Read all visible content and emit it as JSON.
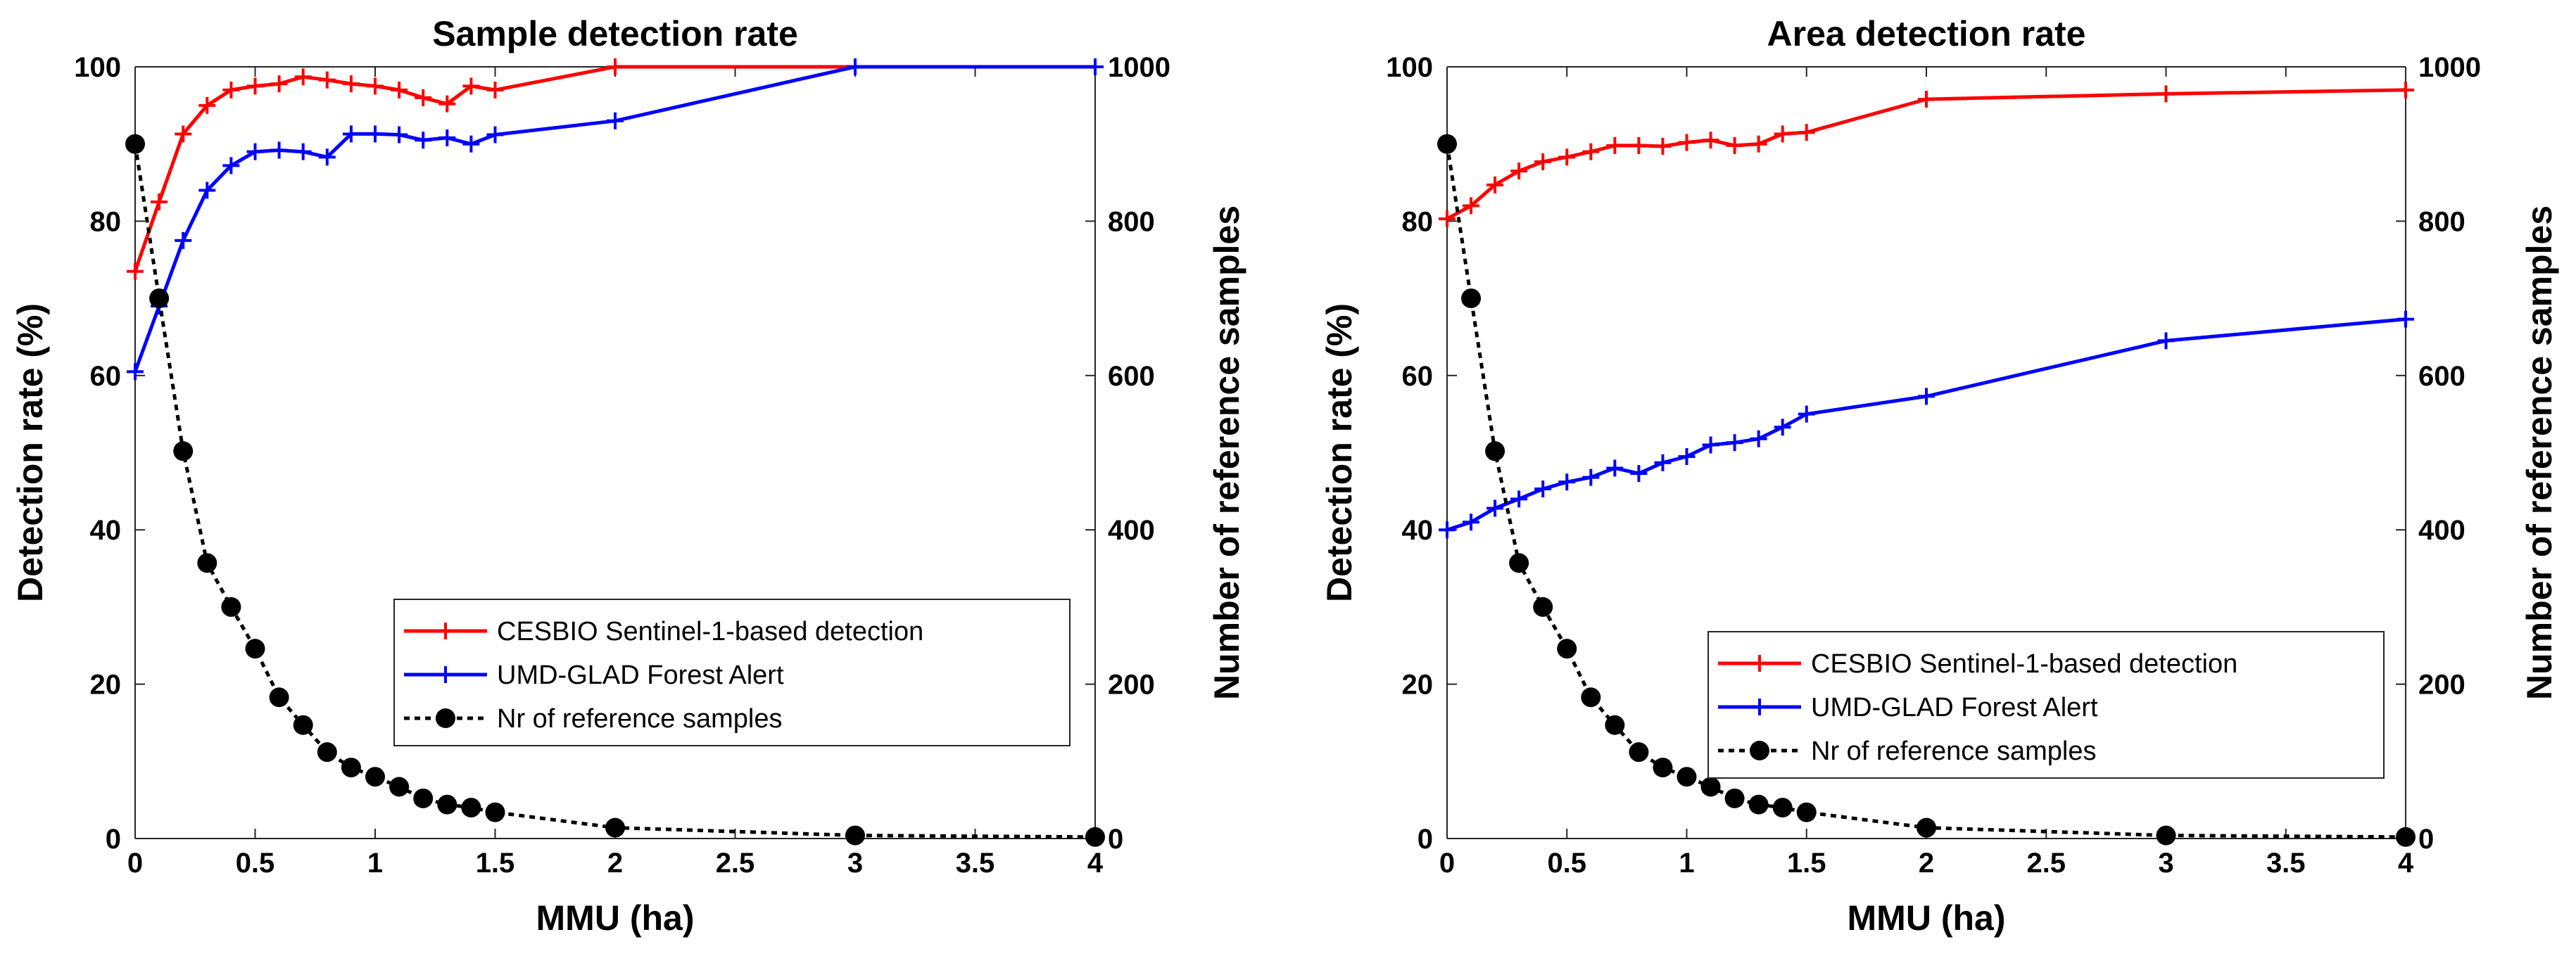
{
  "colors": {
    "red": "#ff0000",
    "blue": "#0000ff",
    "black": "#000000"
  },
  "chart_data": [
    {
      "type": "line",
      "title": "Sample detection rate",
      "xlabel": "MMU (ha)",
      "ylabel": "Detection rate (%)",
      "y2label": "Number of reference samples",
      "xlim": [
        0,
        4
      ],
      "ylim": [
        0,
        100
      ],
      "y2lim": [
        0,
        1000
      ],
      "xticks": [
        "0",
        "0.5",
        "1",
        "1.5",
        "2",
        "2.5",
        "3",
        "3.5",
        "4"
      ],
      "yticks": [
        "0",
        "20",
        "40",
        "60",
        "80",
        "100"
      ],
      "y2ticks": [
        "0",
        "200",
        "400",
        "600",
        "800",
        "1000"
      ],
      "legend_position": "lower-right",
      "series": [
        {
          "name": "CESBIO Sentinel-1-based detection",
          "axis": "left",
          "x": [
            0,
            0.1,
            0.2,
            0.3,
            0.4,
            0.5,
            0.6,
            0.7,
            0.8,
            0.9,
            1.0,
            1.1,
            1.2,
            1.3,
            1.4,
            1.5,
            2,
            3,
            4
          ],
          "values": [
            73.5,
            82.5,
            91.3,
            95.0,
            97.0,
            97.5,
            97.8,
            98.7,
            98.3,
            97.8,
            97.5,
            97.0,
            96.0,
            95.2,
            97.5,
            97.0,
            100,
            100,
            100
          ]
        },
        {
          "name": "UMD-GLAD Forest Alert",
          "axis": "left",
          "x": [
            0,
            0.1,
            0.2,
            0.3,
            0.4,
            0.5,
            0.6,
            0.7,
            0.8,
            0.9,
            1.0,
            1.1,
            1.2,
            1.3,
            1.4,
            1.5,
            2,
            3,
            4
          ],
          "values": [
            60.5,
            69.0,
            77.5,
            84.0,
            87.2,
            89.0,
            89.2,
            89.0,
            88.3,
            91.3,
            91.3,
            91.2,
            90.5,
            90.8,
            90.0,
            91.2,
            93.0,
            100,
            100
          ]
        },
        {
          "name": "Nr of reference samples",
          "axis": "right",
          "x": [
            0,
            0.1,
            0.2,
            0.3,
            0.4,
            0.5,
            0.6,
            0.7,
            0.8,
            0.9,
            1.0,
            1.1,
            1.2,
            1.3,
            1.4,
            1.5,
            2,
            3,
            4
          ],
          "values": [
            900,
            700,
            502,
            357,
            300,
            246,
            183,
            147,
            112,
            92,
            80,
            67,
            52,
            44,
            40,
            34,
            14,
            4,
            2
          ]
        }
      ]
    },
    {
      "type": "line",
      "title": "Area detection rate",
      "xlabel": "MMU (ha)",
      "ylabel": "Detection rate (%)",
      "y2label": "Number of reference samples",
      "xlim": [
        0,
        4
      ],
      "ylim": [
        0,
        100
      ],
      "y2lim": [
        0,
        1000
      ],
      "xticks": [
        "0",
        "0.5",
        "1",
        "1.5",
        "2",
        "2.5",
        "3",
        "3.5",
        "4"
      ],
      "yticks": [
        "0",
        "20",
        "40",
        "60",
        "80",
        "100"
      ],
      "y2ticks": [
        "0",
        "200",
        "400",
        "600",
        "800",
        "1000"
      ],
      "legend_position": "lower-right",
      "series": [
        {
          "name": "CESBIO Sentinel-1-based detection",
          "axis": "left",
          "x": [
            0,
            0.1,
            0.2,
            0.3,
            0.4,
            0.5,
            0.6,
            0.7,
            0.8,
            0.9,
            1.0,
            1.1,
            1.2,
            1.3,
            1.4,
            1.5,
            2,
            3,
            4
          ],
          "values": [
            80.3,
            82.0,
            84.7,
            86.5,
            87.7,
            88.3,
            89.0,
            89.8,
            89.8,
            89.7,
            90.2,
            90.5,
            89.8,
            90.0,
            91.3,
            91.5,
            95.8,
            96.5,
            97.0
          ]
        },
        {
          "name": "UMD-GLAD Forest Alert",
          "axis": "left",
          "x": [
            0,
            0.1,
            0.2,
            0.3,
            0.4,
            0.5,
            0.6,
            0.7,
            0.8,
            0.9,
            1.0,
            1.1,
            1.2,
            1.3,
            1.4,
            1.5,
            2,
            3,
            4
          ],
          "values": [
            40.0,
            41.0,
            42.8,
            44.0,
            45.3,
            46.2,
            46.8,
            48.0,
            47.3,
            48.7,
            49.5,
            51.0,
            51.3,
            51.8,
            53.3,
            55.0,
            57.3,
            64.5,
            67.3
          ]
        },
        {
          "name": "Nr of reference samples",
          "axis": "right",
          "x": [
            0,
            0.1,
            0.2,
            0.3,
            0.4,
            0.5,
            0.6,
            0.7,
            0.8,
            0.9,
            1.0,
            1.1,
            1.2,
            1.3,
            1.4,
            1.5,
            2,
            3,
            4
          ],
          "values": [
            900,
            700,
            502,
            357,
            300,
            246,
            183,
            147,
            112,
            92,
            80,
            67,
            52,
            44,
            40,
            34,
            14,
            4,
            2
          ]
        }
      ]
    }
  ]
}
